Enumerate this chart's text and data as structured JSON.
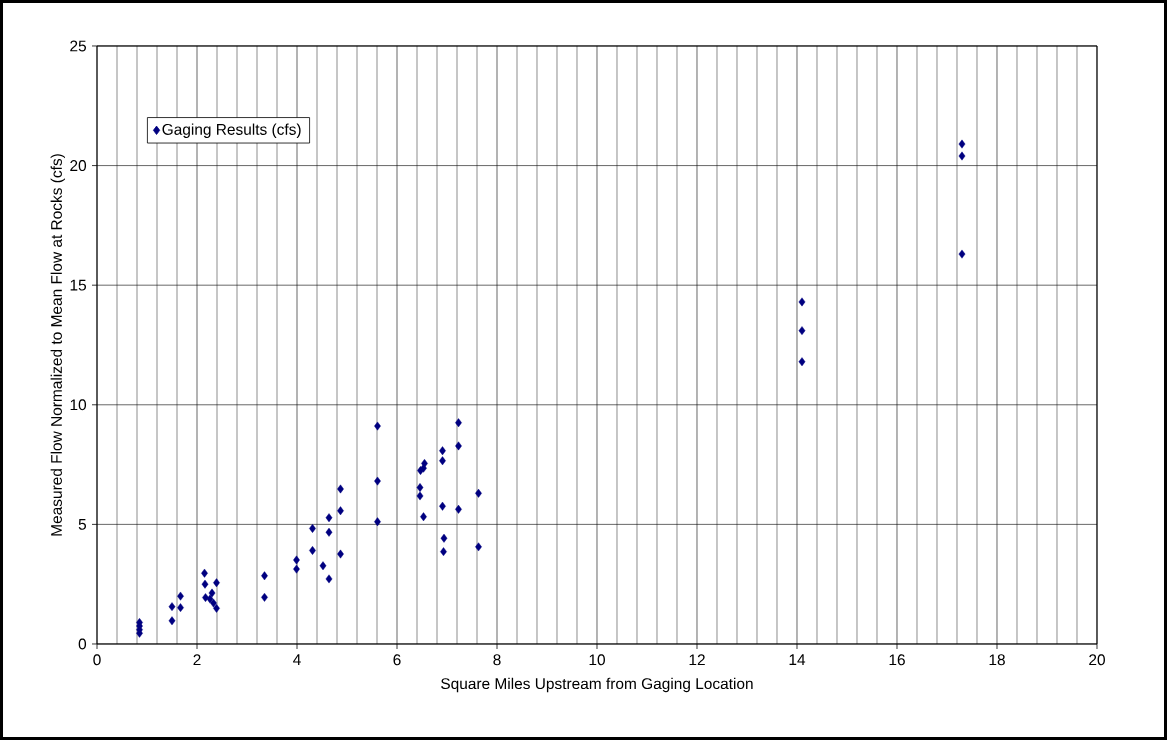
{
  "chart_data": {
    "type": "scatter",
    "xlabel": "Square Miles Upstream from Gaging Location",
    "ylabel": "Measured Flow Normalized to Mean Flow at Rocks (cfs)",
    "series": [
      {
        "name": "Gaging Results (cfs)",
        "color": "#000080",
        "x": [
          0.85,
          0.85,
          0.85,
          0.85,
          1.5,
          1.5,
          1.67,
          1.67,
          2.15,
          2.16,
          2.17,
          2.26,
          2.3,
          2.33,
          2.39,
          2.39,
          3.35,
          3.35,
          3.99,
          3.99,
          4.31,
          4.31,
          4.52,
          4.64,
          4.64,
          4.64,
          4.87,
          4.87,
          4.87,
          5.61,
          5.61,
          5.61,
          6.46,
          6.46,
          6.47,
          6.53,
          6.53,
          6.55,
          6.91,
          6.91,
          6.91,
          6.94,
          6.93,
          7.23,
          7.23,
          7.23,
          7.63,
          7.63,
          14.1,
          14.1,
          14.1,
          17.3,
          17.3,
          17.3
        ],
        "values": [
          0.9,
          0.75,
          0.6,
          0.45,
          1.56,
          0.97,
          2.0,
          1.52,
          2.96,
          2.5,
          1.94,
          1.88,
          2.13,
          1.71,
          2.56,
          1.49,
          2.85,
          1.95,
          3.51,
          3.13,
          4.83,
          3.91,
          3.27,
          5.28,
          4.67,
          2.72,
          6.48,
          5.57,
          3.76,
          9.11,
          6.81,
          5.11,
          6.54,
          6.19,
          7.25,
          7.35,
          5.32,
          7.55,
          8.08,
          7.66,
          5.76,
          4.42,
          3.86,
          9.25,
          8.28,
          5.63,
          6.3,
          4.06,
          14.3,
          13.1,
          11.8,
          20.9,
          20.4,
          16.3
        ]
      }
    ],
    "xlim": [
      0,
      20
    ],
    "ylim": [
      0,
      25
    ],
    "xticks": [
      0,
      2,
      4,
      6,
      8,
      10,
      12,
      14,
      16,
      18,
      20
    ],
    "yticks": [
      0,
      5,
      10,
      15,
      20,
      25
    ],
    "grid": true,
    "legend": "top left",
    "marker": "diamond"
  }
}
